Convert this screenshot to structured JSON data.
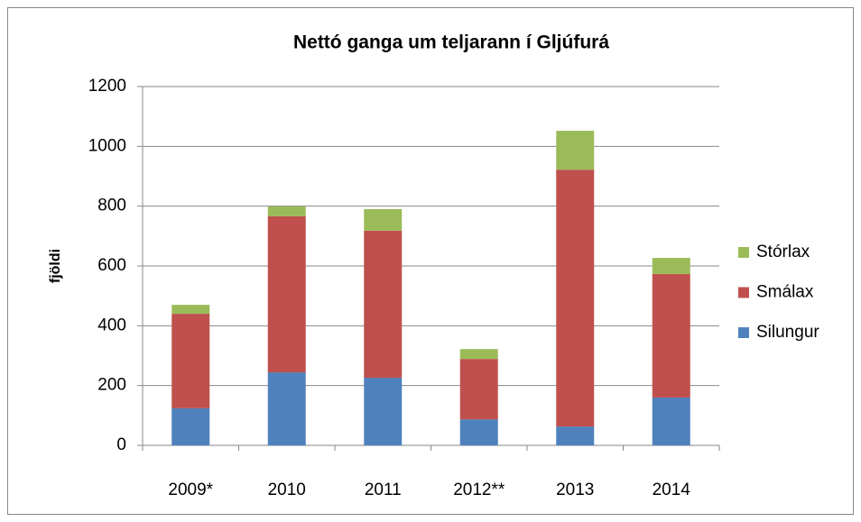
{
  "chart_data": {
    "type": "bar",
    "stacked": true,
    "title": "Nettó ganga um teljarann í Gljúfurá",
    "y_label": "fjöldi",
    "categories": [
      "2009*",
      "2010",
      "2011",
      "2012**",
      "2013",
      "2014"
    ],
    "series": [
      {
        "name": "Silungur",
        "color": "#4f81bd",
        "values": [
          124,
          244,
          226,
          87,
          63,
          160
        ]
      },
      {
        "name": "Smálax",
        "color": "#c0504d",
        "values": [
          316,
          522,
          492,
          202,
          859,
          413
        ]
      },
      {
        "name": "Stórlax",
        "color": "#9bbb59",
        "values": [
          30,
          33,
          72,
          33,
          130,
          54
        ]
      }
    ],
    "ylim": [
      0,
      1200
    ],
    "yticks": [
      0,
      200,
      400,
      600,
      800,
      1000,
      1200
    ],
    "grid": true,
    "legend": "right"
  }
}
